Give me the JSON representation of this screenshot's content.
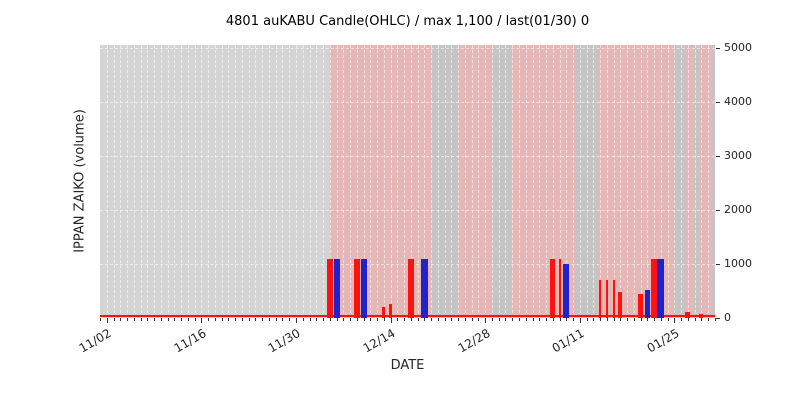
{
  "chart_data": {
    "type": "bar",
    "title": "4801 auKABU Candle(OHLC) / max 1,100 / last(01/30) 0",
    "xlabel": "DATE",
    "ylabel": "IPPAN ZAIKO (volume)",
    "ylim": [
      0,
      5055
    ],
    "yticks": [
      0,
      1000,
      2000,
      3000,
      4000,
      5000
    ],
    "legend": "none",
    "grid": {
      "vertical_dashed_per_day": true,
      "horizontal_dashed_at_yticks": true
    },
    "x_axis": {
      "start_day": 0,
      "end_day": 91,
      "major_ticks": [
        {
          "day": 1,
          "label": "11/02"
        },
        {
          "day": 15,
          "label": "11/16"
        },
        {
          "day": 29,
          "label": "11/30"
        },
        {
          "day": 43,
          "label": "12/14"
        },
        {
          "day": 57,
          "label": "12/28"
        },
        {
          "day": 71,
          "label": "01/11"
        },
        {
          "day": 85,
          "label": "01/25"
        }
      ]
    },
    "colors": {
      "plot_bg": "#d4d4d4",
      "band_pink": "rgba(255,140,140,0.40)",
      "band_dark": "rgba(0,0,0,0.07)",
      "bar_red": "#ff1111",
      "bar_blue": "#2222cc",
      "baseline_red": "#ff1111",
      "grid_line": "rgba(255,255,255,0.55)"
    },
    "baseline": {
      "value": 40
    },
    "bands_pink": [
      [
        34,
        49
      ],
      [
        53,
        58
      ],
      [
        61,
        70.5
      ],
      [
        73.5,
        85
      ],
      [
        86.5,
        87.8
      ],
      [
        88.8,
        90.4
      ]
    ],
    "bands_dark": [
      [
        49,
        53
      ],
      [
        58,
        61
      ],
      [
        70.5,
        73.5
      ],
      [
        85,
        86.5
      ],
      [
        87.8,
        88.8
      ],
      [
        90.4,
        91
      ]
    ],
    "bars": [
      {
        "date": "12/05",
        "day": 34,
        "value": 1100,
        "color": "red",
        "w": 6
      },
      {
        "date": "12/06",
        "day": 35,
        "value": 1100,
        "color": "blue",
        "w": 6
      },
      {
        "date": "12/09",
        "day": 38,
        "value": 1100,
        "color": "red",
        "w": 6
      },
      {
        "date": "12/10",
        "day": 39,
        "value": 1100,
        "color": "blue",
        "w": 6
      },
      {
        "date": "12/13",
        "day": 42,
        "value": 200,
        "color": "red",
        "w": 3
      },
      {
        "date": "12/14",
        "day": 43,
        "value": 260,
        "color": "red",
        "w": 3
      },
      {
        "date": "12/17",
        "day": 46,
        "value": 1100,
        "color": "red",
        "w": 6
      },
      {
        "date": "12/19",
        "day": 48,
        "value": 1100,
        "color": "blue",
        "w": 7
      },
      {
        "date": "01/07",
        "day": 67,
        "value": 1100,
        "color": "red",
        "w": 5
      },
      {
        "date": "01/08",
        "day": 68,
        "value": 1100,
        "color": "red",
        "w": 2
      },
      {
        "date": "01/09",
        "day": 69,
        "value": 1000,
        "color": "blue",
        "w": 6
      },
      {
        "date": "01/14",
        "day": 74,
        "value": 700,
        "color": "red",
        "w": 2
      },
      {
        "date": "01/15",
        "day": 75,
        "value": 700,
        "color": "red",
        "w": 2
      },
      {
        "date": "01/16",
        "day": 76,
        "value": 700,
        "color": "red",
        "w": 2
      },
      {
        "date": "01/17",
        "day": 77,
        "value": 480,
        "color": "red",
        "w": 4
      },
      {
        "date": "01/20",
        "day": 80,
        "value": 450,
        "color": "red",
        "w": 5
      },
      {
        "date": "01/21",
        "day": 81,
        "value": 520,
        "color": "blue",
        "w": 5
      },
      {
        "date": "01/22",
        "day": 82,
        "value": 1100,
        "color": "red",
        "w": 6
      },
      {
        "date": "01/23",
        "day": 83,
        "value": 1100,
        "color": "blue",
        "w": 7
      },
      {
        "date": "01/27",
        "day": 87,
        "value": 120,
        "color": "red",
        "w": 5
      },
      {
        "date": "01/29",
        "day": 89,
        "value": 80,
        "color": "red",
        "w": 4
      }
    ]
  }
}
